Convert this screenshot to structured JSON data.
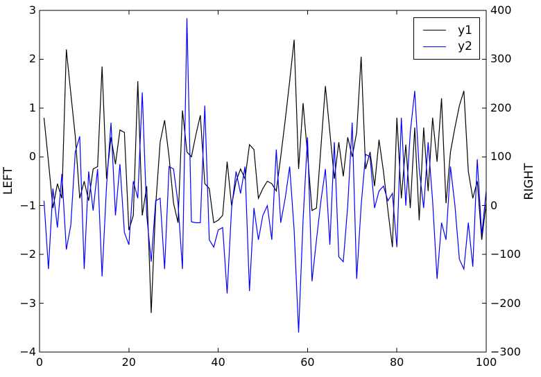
{
  "chart_data": {
    "type": "line",
    "title": "",
    "xlabel": "",
    "grid": false,
    "x": [
      1,
      2,
      3,
      4,
      5,
      6,
      7,
      8,
      9,
      10,
      11,
      12,
      13,
      14,
      15,
      16,
      17,
      18,
      19,
      20,
      21,
      22,
      23,
      24,
      25,
      26,
      27,
      28,
      29,
      30,
      31,
      32,
      33,
      34,
      35,
      36,
      37,
      38,
      39,
      40,
      41,
      42,
      43,
      44,
      45,
      46,
      47,
      48,
      49,
      50,
      51,
      52,
      53,
      54,
      55,
      56,
      57,
      58,
      59,
      60,
      61,
      62,
      63,
      64,
      65,
      66,
      67,
      68,
      69,
      70,
      71,
      72,
      73,
      74,
      75,
      76,
      77,
      78,
      79,
      80,
      81,
      82,
      83,
      84,
      85,
      86,
      87,
      88,
      89,
      90,
      91,
      92,
      93,
      94,
      95,
      96,
      97,
      98,
      99,
      100
    ],
    "series": [
      {
        "name": "y1",
        "axis": "left",
        "color": "#000000",
        "values": [
          0.8,
          -0.1,
          -1.05,
          -0.55,
          -0.85,
          2.2,
          1.3,
          0.42,
          -0.85,
          -0.5,
          -0.9,
          -0.25,
          -0.2,
          1.85,
          -0.45,
          0.4,
          -0.15,
          0.55,
          0.5,
          -1.5,
          -1.2,
          1.55,
          -1.2,
          -0.6,
          -3.2,
          -1.0,
          0.3,
          0.75,
          0.0,
          -0.95,
          -1.35,
          0.95,
          0.1,
          0.0,
          0.45,
          0.85,
          -0.55,
          -0.65,
          -1.35,
          -1.3,
          -1.2,
          -0.1,
          -1.0,
          -0.5,
          -0.25,
          -0.45,
          0.25,
          0.15,
          -0.85,
          -0.65,
          -0.5,
          -0.55,
          -0.7,
          0.0,
          0.75,
          1.55,
          2.4,
          -0.25,
          1.1,
          0.05,
          -1.1,
          -1.05,
          0.2,
          1.45,
          0.5,
          -0.45,
          0.3,
          -0.4,
          0.4,
          0.0,
          0.5,
          2.05,
          -0.25,
          0.1,
          -0.6,
          0.35,
          -0.3,
          -1.1,
          -1.85,
          0.8,
          -0.85,
          0.25,
          -1.05,
          0.6,
          -1.3,
          0.6,
          -0.7,
          0.8,
          -0.1,
          1.2,
          -0.95,
          0.1,
          0.6,
          1.05,
          1.35,
          -0.3,
          -0.85,
          -0.5,
          -1.7,
          -0.95
        ]
      },
      {
        "name": "y2",
        "axis": "right",
        "color": "#0000ff",
        "values": [
          10,
          -130,
          35,
          -45,
          65,
          -90,
          -40,
          110,
          142,
          -130,
          70,
          -10,
          75,
          -145,
          40,
          170,
          -20,
          85,
          -55,
          -80,
          50,
          15,
          232,
          -20,
          -115,
          10,
          15,
          -130,
          80,
          75,
          5,
          -130,
          384,
          -33,
          -35,
          -35,
          205,
          -70,
          -85,
          -50,
          -45,
          -180,
          -5,
          70,
          25,
          80,
          -175,
          -5,
          -70,
          -20,
          0,
          -70,
          115,
          -35,
          15,
          80,
          -50,
          -260,
          -30,
          140,
          -155,
          -70,
          10,
          75,
          -80,
          130,
          -105,
          -115,
          0,
          170,
          -150,
          0,
          105,
          100,
          -5,
          30,
          40,
          10,
          25,
          -85,
          180,
          0,
          150,
          235,
          75,
          -5,
          130,
          10,
          -150,
          -35,
          -70,
          80,
          0,
          -110,
          -130,
          -35,
          -125,
          95,
          -60,
          30
        ]
      }
    ],
    "axes": {
      "x": {
        "range": [
          0,
          100
        ],
        "ticks": [
          0,
          20,
          40,
          60,
          80,
          100
        ],
        "label": ""
      },
      "left": {
        "range": [
          -4,
          3
        ],
        "ticks": [
          3,
          2,
          1,
          0,
          -1,
          -2,
          -3,
          -4
        ],
        "label": "LEFT"
      },
      "right": {
        "range": [
          -300,
          400
        ],
        "ticks": [
          400,
          300,
          200,
          100,
          0,
          -100,
          -200,
          -300
        ],
        "label": "RIGHT"
      }
    },
    "legend": {
      "position": "upper right",
      "entries": [
        {
          "label": "y1",
          "color": "#000000"
        },
        {
          "label": "y2",
          "color": "#0000ff"
        }
      ]
    }
  }
}
